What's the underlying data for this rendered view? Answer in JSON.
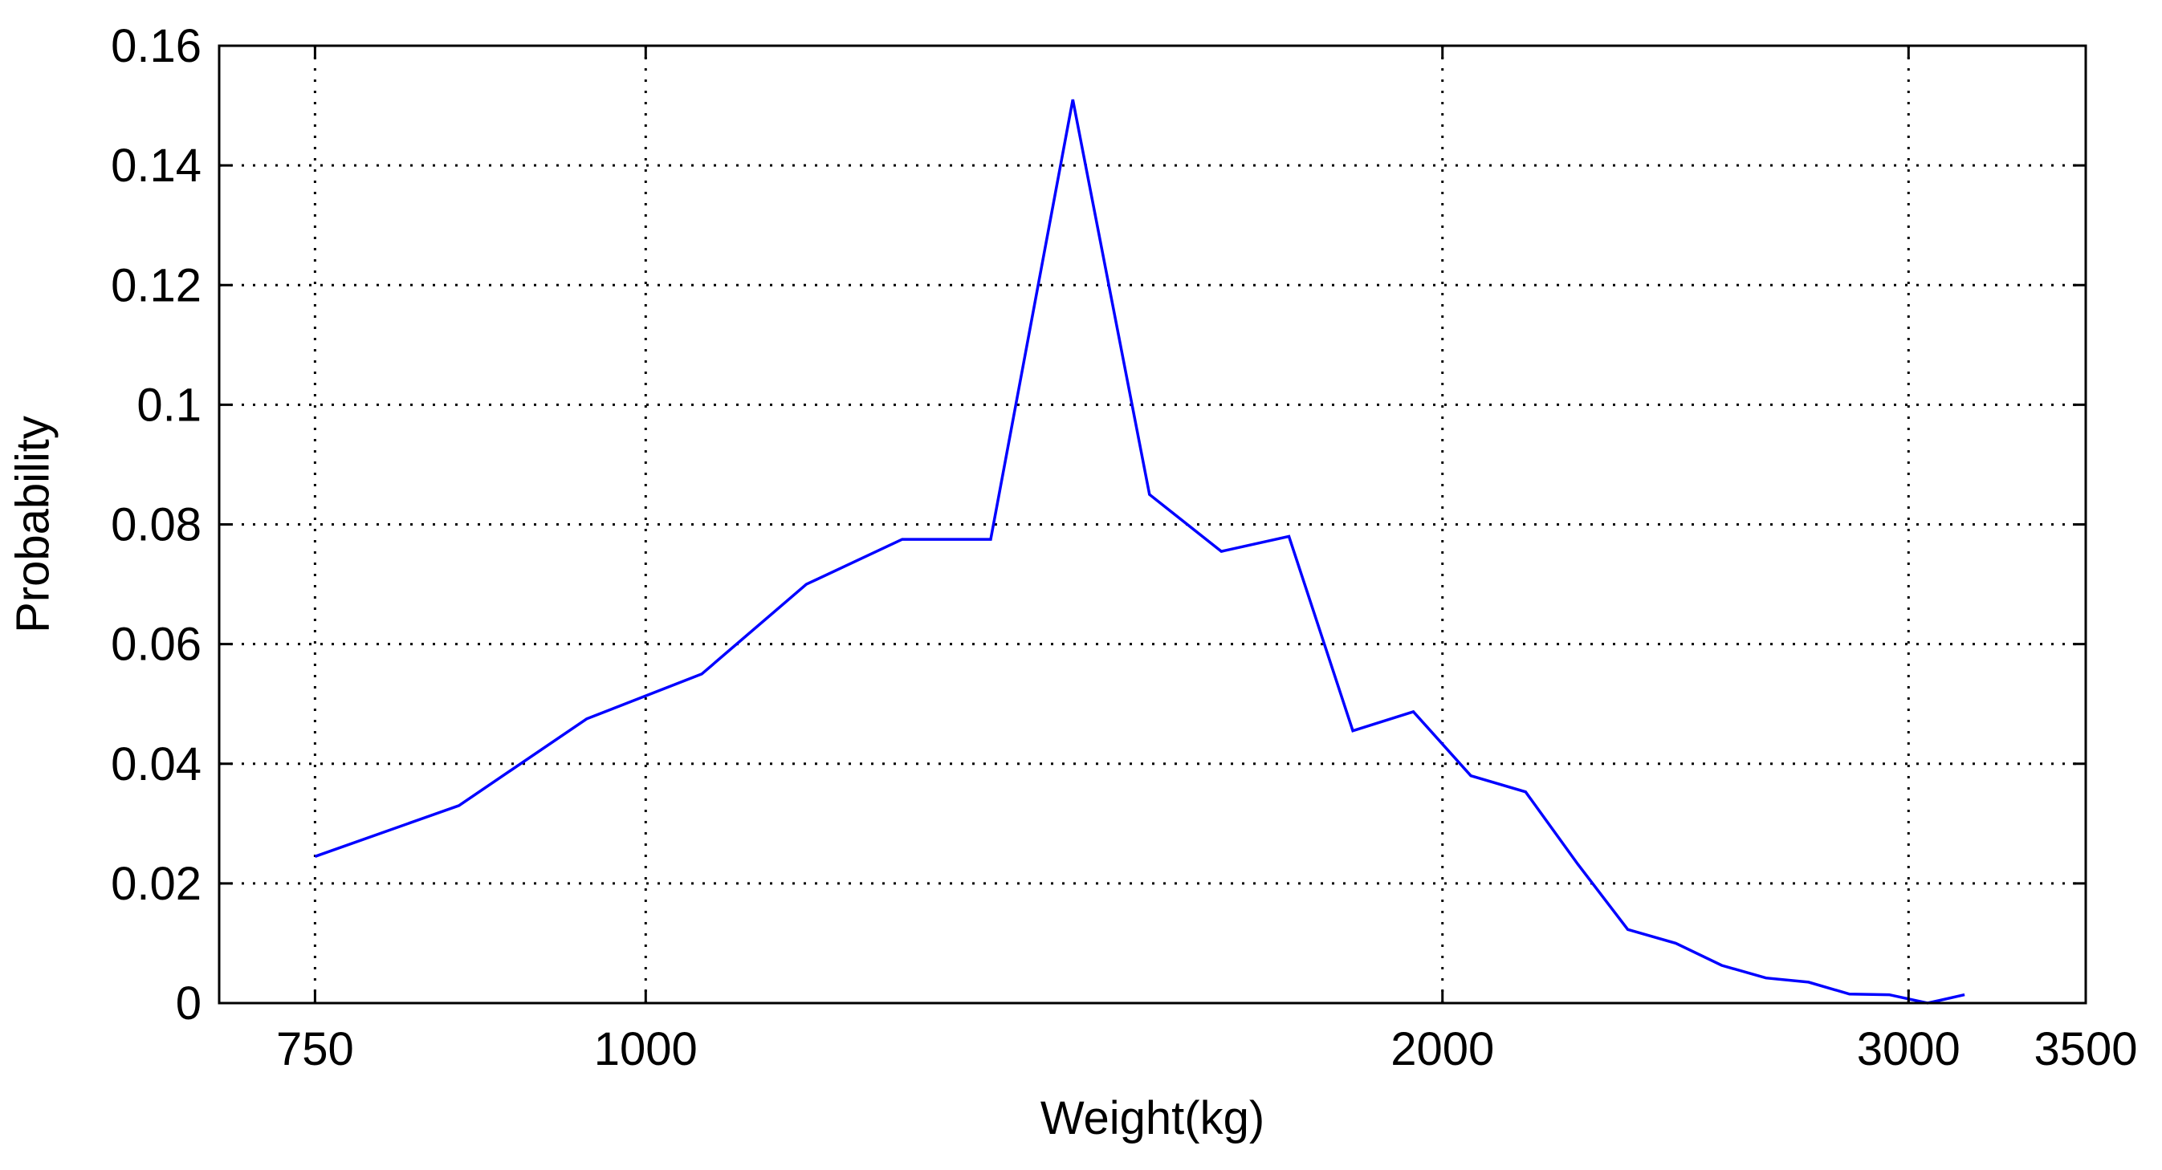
{
  "chart_data": {
    "type": "line",
    "title": "",
    "xlabel": "Weight(kg)",
    "ylabel": "Probability",
    "x_scale": "log",
    "xlim": [
      690,
      3500
    ],
    "ylim": [
      0,
      0.16
    ],
    "x_ticks": [
      750,
      1000,
      2000,
      3000,
      3500
    ],
    "x_tick_labels": [
      "750",
      "1000",
      "2000",
      "3000",
      "3500"
    ],
    "y_ticks": [
      0,
      0.02,
      0.04,
      0.06,
      0.08,
      0.1,
      0.12,
      0.14,
      0.16
    ],
    "y_tick_labels": [
      "0",
      "0.02",
      "0.04",
      "0.06",
      "0.08",
      "0.1",
      "0.12",
      "0.14",
      "0.16"
    ],
    "grid": true,
    "grid_style": "dotted",
    "series": [
      {
        "color": "#0000ff",
        "x": [
          750,
          850,
          950,
          1050,
          1150,
          1250,
          1350,
          1450,
          1550,
          1650,
          1750,
          1850,
          1950,
          2050,
          2150,
          2250,
          2350,
          2450,
          2550,
          2650,
          2750,
          2850,
          2950,
          3050,
          3150
        ],
        "y": [
          0.0245,
          0.033,
          0.0475,
          0.055,
          0.07,
          0.0775,
          0.0775,
          0.151,
          0.085,
          0.0755,
          0.078,
          0.0455,
          0.0487,
          0.038,
          0.0353,
          0.0232,
          0.0123,
          0.01,
          0.0063,
          0.0042,
          0.0035,
          0.0015,
          0.0014,
          0.0,
          0.0014
        ]
      }
    ]
  }
}
